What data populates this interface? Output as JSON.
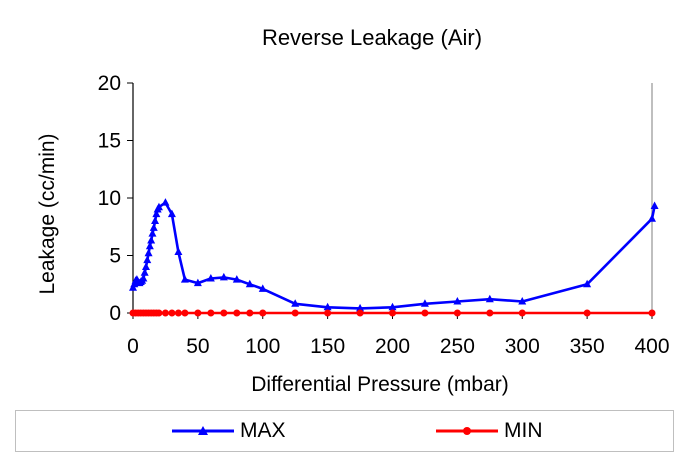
{
  "chart_data": {
    "type": "line",
    "title": "Reverse Leakage (Air)",
    "xlabel": "Differential Pressure (mbar)",
    "ylabel": "Leakage (cc/min)",
    "xlim": [
      0,
      400
    ],
    "ylim": [
      0,
      20
    ],
    "xticks": [
      0,
      50,
      100,
      150,
      200,
      250,
      300,
      350,
      400
    ],
    "yticks": [
      0,
      5,
      10,
      15,
      20
    ],
    "grid": false,
    "legend_position": "bottom",
    "series": [
      {
        "name": "MAX",
        "color": "#0000ff",
        "marker": "triangle",
        "x": [
          0,
          1,
          2,
          3,
          4,
          5,
          6,
          7,
          8,
          9,
          10,
          11,
          12,
          13,
          14,
          15,
          16,
          17,
          18,
          19,
          20,
          25,
          30,
          35,
          40,
          50,
          60,
          70,
          80,
          90,
          100,
          125,
          150,
          175,
          200,
          225,
          250,
          275,
          300,
          350,
          400,
          402
        ],
        "y": [
          2.2,
          2.5,
          2.8,
          2.9,
          2.7,
          2.6,
          2.7,
          2.8,
          3.0,
          3.5,
          4.0,
          4.6,
          5.2,
          5.8,
          6.3,
          6.9,
          7.4,
          8.0,
          8.6,
          9.0,
          9.2,
          9.6,
          8.6,
          5.3,
          2.9,
          2.6,
          3.0,
          3.1,
          2.9,
          2.5,
          2.1,
          0.8,
          0.5,
          0.4,
          0.5,
          0.8,
          1.0,
          1.2,
          1.0,
          2.5,
          8.2,
          9.3
        ]
      },
      {
        "name": "MIN",
        "color": "#ff0000",
        "marker": "circle",
        "x": [
          0,
          2,
          4,
          6,
          8,
          10,
          12,
          14,
          16,
          18,
          20,
          25,
          30,
          35,
          40,
          50,
          60,
          70,
          80,
          90,
          100,
          125,
          150,
          175,
          200,
          225,
          250,
          275,
          300,
          350,
          400
        ],
        "y": [
          0,
          0,
          0,
          0,
          0,
          0,
          0,
          0,
          0,
          0,
          0,
          0,
          0,
          0,
          0,
          0,
          0,
          0,
          0,
          0,
          0,
          0,
          0,
          0,
          0,
          0,
          0,
          0,
          0,
          0,
          0
        ]
      }
    ]
  }
}
